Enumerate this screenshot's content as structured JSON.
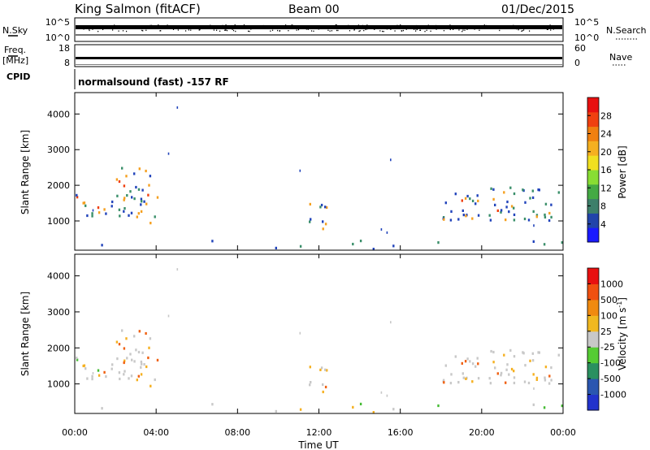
{
  "header": {
    "station": "King Salmon (fitACF)",
    "beam": "Beam 00",
    "date": "01/Dec/2015"
  },
  "top_panels": {
    "nsky_label": "N.Sky",
    "nsky_ticks": [
      "10^5",
      "10^0"
    ],
    "nsearch_label": "N.Search",
    "nsearch_ticks": [
      "10^5",
      "10^0"
    ],
    "freq_label_1": "Freq.",
    "freq_label_2": "[MHz]",
    "freq_ticks": [
      "18",
      "8"
    ],
    "nave_label": "Nave",
    "nave_ticks": [
      "60",
      "0"
    ],
    "cpid_label": "CPID",
    "cpid_text": "normalsound (fast) -157 RF"
  },
  "chart_data": [
    {
      "type": "heatmap",
      "name": "power",
      "ylabel": "Slant Range [km]",
      "yticks": [
        "4000",
        "3000",
        "2000",
        "1000"
      ],
      "ylim": [
        180,
        4600
      ],
      "xlim": [
        0,
        24
      ],
      "colorbar_label": "Power [dB]",
      "colorbar_ticks": [
        "28",
        "24",
        "20",
        "16",
        "12",
        "8",
        "4"
      ],
      "colorbar_colors": [
        "#1a1aff",
        "#2244aa",
        "#3d7f6a",
        "#44aa44",
        "#88dd33",
        "#f0e020",
        "#f5b020",
        "#f08010",
        "#f04010",
        "#e81010"
      ],
      "colors": {
        "weak": "#2244bb",
        "mid": "#3a8f6a",
        "strong": "#f5a020",
        "peak": "#f04010"
      }
    },
    {
      "type": "heatmap",
      "name": "velocity",
      "ylabel": "Slant Range [km]",
      "yticks": [
        "4000",
        "3000",
        "2000",
        "1000"
      ],
      "ylim": [
        180,
        4600
      ],
      "xlim": [
        0,
        24
      ],
      "xlabel": "Time UT",
      "xticks": [
        "00:00",
        "04:00",
        "08:00",
        "12:00",
        "16:00",
        "20:00",
        "00:00"
      ],
      "colorbar_label": "Velocity [m s",
      "colorbar_label_sup": "-1",
      "colorbar_label_end": "]",
      "colorbar_ticks": [
        "1000",
        "500",
        "100",
        "25",
        "-25",
        "-100",
        "-500",
        "-1000"
      ],
      "colorbar_colors": [
        "#2233cc",
        "#2a56b0",
        "#2a9060",
        "#55cc33",
        "#c8c8c8",
        "#f0b820",
        "#f08a10",
        "#f05010",
        "#e81010"
      ],
      "colors": {
        "ground": "#c8c8c8",
        "slow_away": "#f5b020",
        "fast_away": "#f06010",
        "toward": "#44bb33"
      }
    }
  ]
}
